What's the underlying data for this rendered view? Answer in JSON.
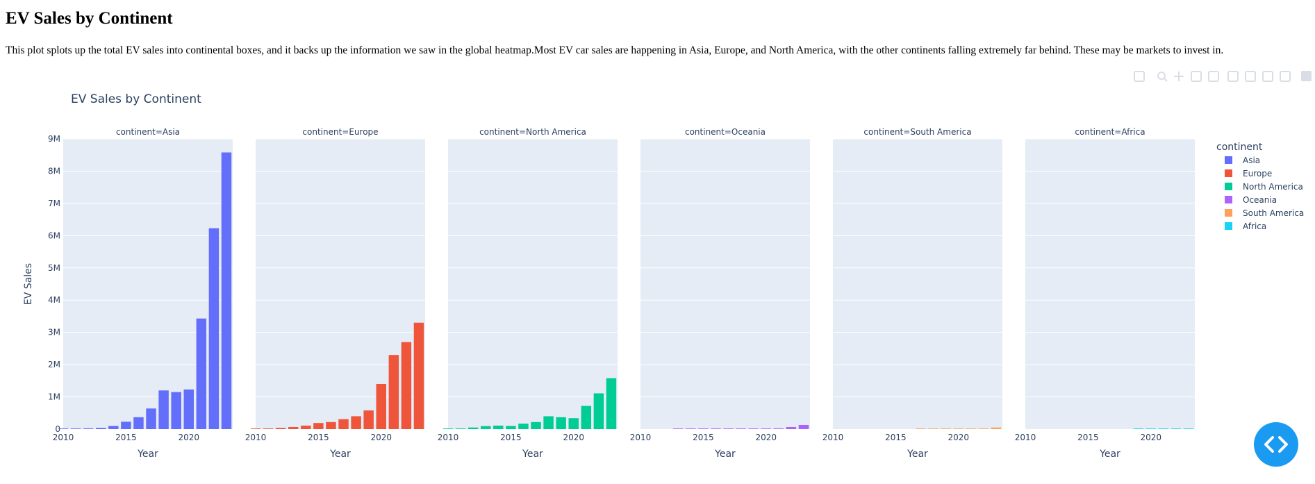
{
  "page": {
    "heading": "EV Sales by Continent",
    "description": "This plot splots up the total EV sales into continental boxes, and it backs up the information we saw in the global heatmap.Most EV car sales are happening in Asia, Europe, and North America, with the other continents falling extremely far behind. These may be markets to invest in."
  },
  "chart_data": {
    "type": "bar",
    "title": "EV Sales by Continent",
    "xlabel": "Year",
    "ylabel": "EV Sales",
    "ylim": [
      0,
      9000000
    ],
    "xlim": [
      2010,
      2023.5
    ],
    "yticks": [
      0,
      1000000,
      2000000,
      3000000,
      4000000,
      5000000,
      6000000,
      7000000,
      8000000,
      9000000
    ],
    "ytick_labels": [
      "0",
      "1M",
      "2M",
      "3M",
      "4M",
      "5M",
      "6M",
      "7M",
      "8M",
      "9M"
    ],
    "xticks": [
      2010,
      2015,
      2020
    ],
    "xtick_labels": [
      "2010",
      "2015",
      "2020"
    ],
    "grid": true,
    "legend_title": "continent",
    "legend_position": "right",
    "x": [
      2010,
      2011,
      2012,
      2013,
      2014,
      2015,
      2016,
      2017,
      2018,
      2019,
      2020,
      2021,
      2022,
      2023
    ],
    "series": [
      {
        "name": "Asia",
        "facet_label": "continent=Asia",
        "color": "#636efa",
        "values": [
          5000,
          20000,
          25000,
          40000,
          100000,
          230000,
          370000,
          640000,
          1200000,
          1150000,
          1230000,
          3430000,
          6230000,
          8580000
        ]
      },
      {
        "name": "Europe",
        "facet_label": "continent=Europe",
        "color": "#EF553B",
        "values": [
          2000,
          12000,
          40000,
          65000,
          110000,
          190000,
          220000,
          310000,
          400000,
          580000,
          1400000,
          2300000,
          2700000,
          3300000
        ]
      },
      {
        "name": "North America",
        "facet_label": "continent=North America",
        "color": "#00cc96",
        "values": [
          2000,
          20000,
          50000,
          95000,
          110000,
          100000,
          170000,
          220000,
          400000,
          370000,
          340000,
          720000,
          1110000,
          1580000
        ]
      },
      {
        "name": "Oceania",
        "facet_label": "continent=Oceania",
        "color": "#ab63fa",
        "values": [
          0,
          0,
          0,
          1000,
          1500,
          2000,
          2500,
          3000,
          5000,
          8000,
          10000,
          25000,
          65000,
          130000
        ]
      },
      {
        "name": "South America",
        "facet_label": "continent=South America",
        "color": "#FFA15A",
        "values": [
          0,
          0,
          0,
          0,
          0,
          0,
          0,
          500,
          1000,
          2000,
          3000,
          10000,
          20000,
          50000
        ]
      },
      {
        "name": "Africa",
        "facet_label": "continent=Africa",
        "color": "#19d3f3",
        "values": [
          0,
          0,
          0,
          0,
          0,
          0,
          0,
          0,
          0,
          500,
          800,
          1500,
          2500,
          4000
        ]
      }
    ]
  }
}
